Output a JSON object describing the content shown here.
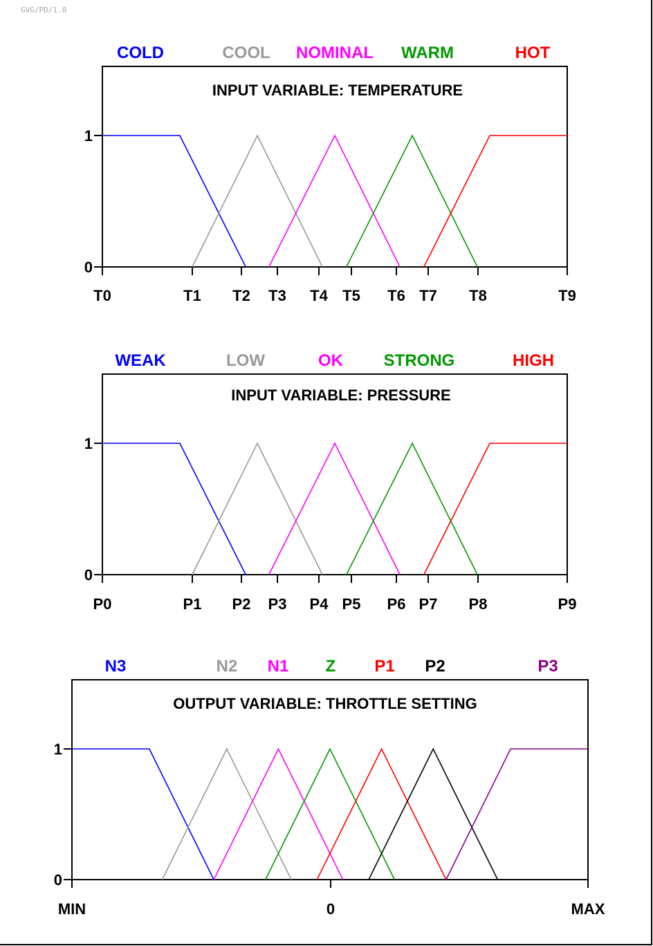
{
  "stamp": "GVG/PD/1.0",
  "chart_data": [
    {
      "type": "line",
      "title": "INPUT VARIABLE: TEMPERATURE",
      "xlim": [
        0,
        9
      ],
      "ylim": [
        0,
        1
      ],
      "y_ticks": [
        "0",
        "1"
      ],
      "x_ticks": [
        {
          "label": "T0",
          "x": 0
        },
        {
          "label": "T1",
          "x": 1.16
        },
        {
          "label": "T2",
          "x": 1.85
        },
        {
          "label": "T3",
          "x": 2.15
        },
        {
          "label": "T4",
          "x": 2.84
        },
        {
          "label": "T5",
          "x": 3.15
        },
        {
          "label": "T6",
          "x": 3.84
        },
        {
          "label": "T7",
          "x": 4.15
        },
        {
          "label": "T8",
          "x": 4.84
        },
        {
          "label": "T9",
          "x": 6
        }
      ],
      "series": [
        {
          "name": "COLD",
          "color": "#0000ff",
          "points": [
            [
              0,
              1
            ],
            [
              1.0,
              1
            ],
            [
              1.85,
              0
            ]
          ]
        },
        {
          "name": "COOL",
          "color": "#999999",
          "points": [
            [
              1.16,
              0
            ],
            [
              2.0,
              1
            ],
            [
              2.84,
              0
            ]
          ]
        },
        {
          "name": "NOMINAL",
          "color": "#ff00ff",
          "points": [
            [
              2.15,
              0
            ],
            [
              3.0,
              1
            ],
            [
              3.84,
              0
            ]
          ]
        },
        {
          "name": "WARM",
          "color": "#009900",
          "points": [
            [
              3.15,
              0
            ],
            [
              4.0,
              1
            ],
            [
              4.84,
              0
            ]
          ]
        },
        {
          "name": "HOT",
          "color": "#ff0000",
          "points": [
            [
              4.15,
              0
            ],
            [
              5.0,
              1
            ],
            [
              6,
              1
            ]
          ]
        }
      ]
    },
    {
      "type": "line",
      "title": "INPUT VARIABLE:  PRESSURE",
      "xlim": [
        0,
        9
      ],
      "ylim": [
        0,
        1
      ],
      "y_ticks": [
        "0",
        "1"
      ],
      "x_ticks": [
        {
          "label": "P0",
          "x": 0
        },
        {
          "label": "P1",
          "x": 1.16
        },
        {
          "label": "P2",
          "x": 1.85
        },
        {
          "label": "P3",
          "x": 2.15
        },
        {
          "label": "P4",
          "x": 2.84
        },
        {
          "label": "P5",
          "x": 3.15
        },
        {
          "label": "P6",
          "x": 3.84
        },
        {
          "label": "P7",
          "x": 4.15
        },
        {
          "label": "P8",
          "x": 4.84
        },
        {
          "label": "P9",
          "x": 6
        }
      ],
      "series": [
        {
          "name": "WEAK",
          "color": "#0000ff",
          "points": [
            [
              0,
              1
            ],
            [
              1.0,
              1
            ],
            [
              1.85,
              0
            ]
          ]
        },
        {
          "name": "LOW",
          "color": "#999999",
          "points": [
            [
              1.16,
              0
            ],
            [
              2.0,
              1
            ],
            [
              2.84,
              0
            ]
          ]
        },
        {
          "name": "OK",
          "color": "#ff00ff",
          "points": [
            [
              2.15,
              0
            ],
            [
              3.0,
              1
            ],
            [
              3.84,
              0
            ]
          ]
        },
        {
          "name": "STRONG",
          "color": "#009900",
          "points": [
            [
              3.15,
              0
            ],
            [
              4.0,
              1
            ],
            [
              4.84,
              0
            ]
          ]
        },
        {
          "name": "HIGH",
          "color": "#ff0000",
          "points": [
            [
              4.15,
              0
            ],
            [
              5.0,
              1
            ],
            [
              6,
              1
            ]
          ]
        }
      ]
    },
    {
      "type": "line",
      "title": "OUTPUT VARIABLE:  THROTTLE SETTING",
      "xlim": [
        -1,
        1
      ],
      "ylim": [
        0,
        1
      ],
      "y_ticks": [
        "0",
        "1"
      ],
      "x_ticks": [
        {
          "label": "MIN",
          "x": -1
        },
        {
          "label": "0",
          "x": 0
        },
        {
          "label": "MAX",
          "x": 1
        }
      ],
      "series": [
        {
          "name": "N3",
          "color": "#0000ff",
          "points": [
            [
              -1,
              1
            ],
            [
              -0.7,
              1
            ],
            [
              -0.45,
              0
            ]
          ]
        },
        {
          "name": "N2",
          "color": "#999999",
          "points": [
            [
              -0.65,
              0
            ],
            [
              -0.4,
              1
            ],
            [
              -0.15,
              0
            ]
          ]
        },
        {
          "name": "N1",
          "color": "#ff00ff",
          "points": [
            [
              -0.45,
              0
            ],
            [
              -0.2,
              1
            ],
            [
              0.05,
              0
            ]
          ]
        },
        {
          "name": "Z",
          "color": "#009900",
          "points": [
            [
              -0.25,
              0
            ],
            [
              0,
              1
            ],
            [
              0.25,
              0
            ]
          ]
        },
        {
          "name": "P1",
          "color": "#ff0000",
          "points": [
            [
              -0.05,
              0
            ],
            [
              0.2,
              1
            ],
            [
              0.45,
              0
            ]
          ]
        },
        {
          "name": "P2",
          "color": "#000000",
          "points": [
            [
              0.15,
              0
            ],
            [
              0.4,
              1
            ],
            [
              0.65,
              0
            ]
          ]
        },
        {
          "name": "P3",
          "color": "#8b008b",
          "points": [
            [
              0.45,
              0
            ],
            [
              0.7,
              1
            ],
            [
              1,
              1
            ]
          ]
        }
      ]
    }
  ]
}
